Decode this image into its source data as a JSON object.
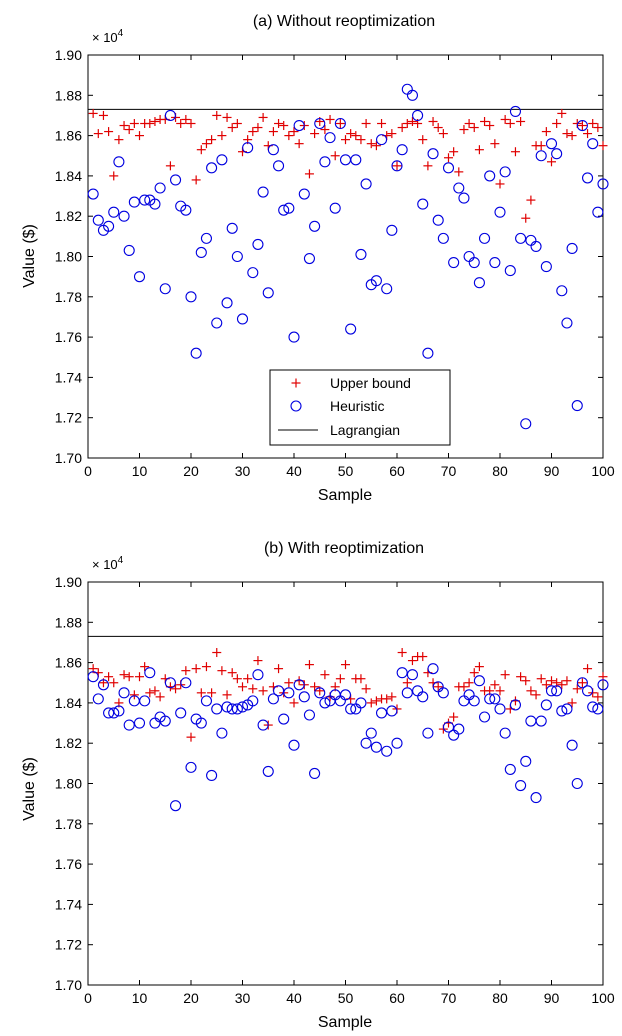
{
  "figure": {
    "marker_colors": {
      "upper": "#e00000",
      "heuristic": "#0000e0",
      "lagrangian": "#000000"
    }
  },
  "chart_data": [
    {
      "type": "scatter",
      "title": "(a) Without reoptimization",
      "xlabel": "Sample",
      "ylabel": "Value ($)",
      "multiplier_label": "× 10",
      "multiplier_exp": "4",
      "xlim": [
        0,
        100
      ],
      "ylim": [
        1.7,
        1.9
      ],
      "xticks": [
        "0",
        "10",
        "20",
        "30",
        "40",
        "50",
        "60",
        "70",
        "80",
        "90",
        "100"
      ],
      "yticks": [
        "1.70",
        "1.72",
        "1.74",
        "1.76",
        "1.78",
        "1.80",
        "1.82",
        "1.84",
        "1.86",
        "1.88",
        "1.90"
      ],
      "legend": {
        "position": "lower-center",
        "entries": [
          "Upper bound",
          "Heuristic",
          "Lagrangian"
        ]
      },
      "lagrangian": 1.873,
      "series": [
        {
          "name": "Upper bound",
          "marker": "+",
          "values": [
            1.871,
            1.861,
            1.87,
            1.862,
            1.84,
            1.858,
            1.865,
            1.863,
            1.866,
            1.86,
            1.866,
            1.866,
            1.867,
            1.868,
            1.868,
            1.845,
            1.869,
            1.866,
            1.868,
            1.866,
            1.838,
            1.853,
            1.856,
            1.858,
            1.87,
            1.86,
            1.869,
            1.864,
            1.866,
            1.852,
            1.858,
            1.862,
            1.864,
            1.869,
            1.855,
            1.862,
            1.866,
            1.865,
            1.86,
            1.862,
            1.856,
            1.865,
            1.841,
            1.861,
            1.867,
            1.863,
            1.868,
            1.85,
            1.866,
            1.858,
            1.861,
            1.86,
            1.858,
            1.866,
            1.856,
            1.855,
            1.866,
            1.86,
            1.861,
            1.845,
            1.864,
            1.866,
            1.867,
            1.866,
            1.858,
            1.845,
            1.867,
            1.864,
            1.861,
            1.849,
            1.852,
            1.842,
            1.863,
            1.866,
            1.864,
            1.853,
            1.867,
            1.865,
            1.856,
            1.836,
            1.868,
            1.866,
            1.852,
            1.867,
            1.819,
            1.828,
            1.855,
            1.855,
            1.862,
            1.847,
            1.866,
            1.871,
            1.861,
            1.86,
            1.866,
            1.865,
            1.861,
            1.866,
            1.864,
            1.855
          ]
        },
        {
          "name": "Heuristic",
          "marker": "o",
          "values": [
            1.831,
            1.818,
            1.813,
            1.815,
            1.822,
            1.847,
            1.82,
            1.803,
            1.827,
            1.79,
            1.828,
            1.828,
            1.826,
            1.834,
            1.784,
            1.87,
            1.838,
            1.825,
            1.823,
            1.78,
            1.752,
            1.802,
            1.809,
            1.844,
            1.767,
            1.848,
            1.777,
            1.814,
            1.8,
            1.769,
            1.854,
            1.792,
            1.806,
            1.832,
            1.782,
            1.853,
            1.845,
            1.823,
            1.824,
            1.76,
            1.865,
            1.831,
            1.799,
            1.815,
            1.866,
            1.847,
            1.859,
            1.824,
            1.866,
            1.848,
            1.764,
            1.848,
            1.801,
            1.836,
            1.786,
            1.788,
            1.858,
            1.784,
            1.813,
            1.845,
            1.853,
            1.883,
            1.88,
            1.87,
            1.826,
            1.752,
            1.851,
            1.818,
            1.809,
            1.844,
            1.797,
            1.834,
            1.829,
            1.8,
            1.797,
            1.787,
            1.809,
            1.84,
            1.797,
            1.822,
            1.842,
            1.793,
            1.872,
            1.809,
            1.717,
            1.808,
            1.805,
            1.85,
            1.795,
            1.856,
            1.851,
            1.783,
            1.767,
            1.804,
            1.726,
            1.865,
            1.839,
            1.856,
            1.822,
            1.836
          ]
        }
      ]
    },
    {
      "type": "scatter",
      "title": "(b) With reoptimization",
      "xlabel": "Sample",
      "ylabel": "Value ($)",
      "multiplier_label": "× 10",
      "multiplier_exp": "4",
      "xlim": [
        0,
        100
      ],
      "ylim": [
        1.7,
        1.9
      ],
      "xticks": [
        "0",
        "10",
        "20",
        "30",
        "40",
        "50",
        "60",
        "70",
        "80",
        "90",
        "100"
      ],
      "yticks": [
        "1.70",
        "1.72",
        "1.74",
        "1.76",
        "1.78",
        "1.80",
        "1.82",
        "1.84",
        "1.86",
        "1.88",
        "1.90"
      ],
      "lagrangian": 1.873,
      "series": [
        {
          "name": "Upper bound",
          "marker": "+",
          "values": [
            1.857,
            1.855,
            1.85,
            1.853,
            1.85,
            1.84,
            1.854,
            1.853,
            1.844,
            1.853,
            1.858,
            1.845,
            1.846,
            1.843,
            1.852,
            1.848,
            1.847,
            1.849,
            1.856,
            1.823,
            1.857,
            1.845,
            1.858,
            1.845,
            1.865,
            1.856,
            1.844,
            1.855,
            1.852,
            1.848,
            1.852,
            1.847,
            1.861,
            1.846,
            1.829,
            1.848,
            1.857,
            1.845,
            1.85,
            1.84,
            1.851,
            1.849,
            1.859,
            1.848,
            1.846,
            1.854,
            1.843,
            1.848,
            1.852,
            1.859,
            1.842,
            1.852,
            1.852,
            1.847,
            1.84,
            1.841,
            1.842,
            1.842,
            1.843,
            1.837,
            1.865,
            1.85,
            1.861,
            1.863,
            1.863,
            1.855,
            1.85,
            1.848,
            1.827,
            1.83,
            1.833,
            1.848,
            1.848,
            1.85,
            1.855,
            1.858,
            1.846,
            1.846,
            1.849,
            1.846,
            1.854,
            1.837,
            1.841,
            1.853,
            1.851,
            1.846,
            1.844,
            1.852,
            1.849,
            1.851,
            1.85,
            1.849,
            1.851,
            1.84,
            1.847,
            1.85,
            1.857,
            1.845,
            1.843,
            1.853
          ]
        },
        {
          "name": "Heuristic",
          "marker": "o",
          "values": [
            1.853,
            1.842,
            1.849,
            1.835,
            1.835,
            1.836,
            1.845,
            1.829,
            1.841,
            1.83,
            1.841,
            1.855,
            1.83,
            1.833,
            1.831,
            1.85,
            1.789,
            1.835,
            1.85,
            1.808,
            1.832,
            1.83,
            1.841,
            1.804,
            1.837,
            1.825,
            1.838,
            1.837,
            1.837,
            1.838,
            1.839,
            1.841,
            1.854,
            1.829,
            1.806,
            1.842,
            1.846,
            1.832,
            1.845,
            1.819,
            1.849,
            1.843,
            1.834,
            1.805,
            1.845,
            1.84,
            1.841,
            1.844,
            1.841,
            1.844,
            1.837,
            1.837,
            1.84,
            1.82,
            1.825,
            1.818,
            1.835,
            1.816,
            1.836,
            1.82,
            1.855,
            1.845,
            1.854,
            1.846,
            1.843,
            1.825,
            1.857,
            1.848,
            1.845,
            1.828,
            1.824,
            1.827,
            1.841,
            1.844,
            1.841,
            1.851,
            1.833,
            1.842,
            1.842,
            1.837,
            1.825,
            1.807,
            1.839,
            1.799,
            1.811,
            1.831,
            1.793,
            1.831,
            1.839,
            1.846,
            1.846,
            1.836,
            1.837,
            1.819,
            1.8,
            1.85,
            1.846,
            1.838,
            1.837,
            1.849
          ]
        }
      ]
    }
  ]
}
